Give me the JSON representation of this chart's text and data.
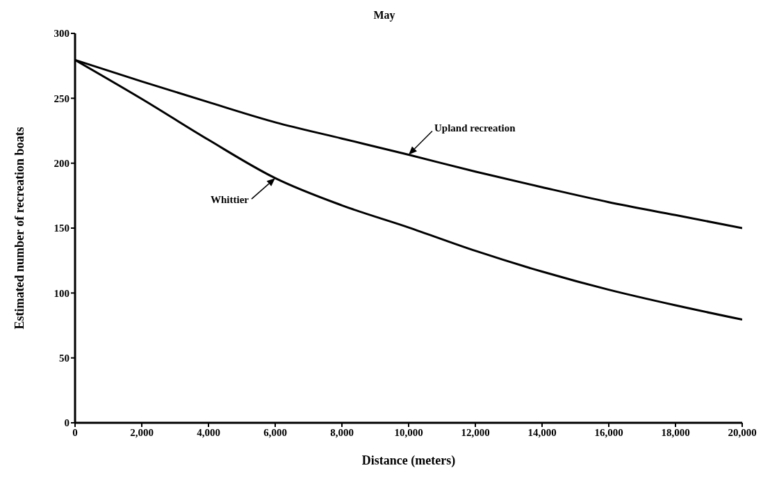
{
  "chart_data": {
    "type": "line",
    "title": "May",
    "xlabel": "Distance (meters)",
    "ylabel": "Estimated number of recreation boats",
    "x": [
      0,
      2000,
      4000,
      6000,
      8000,
      10000,
      12000,
      14000,
      16000,
      18000,
      20000
    ],
    "series": [
      {
        "name": "Upland recreation",
        "color": "#000000",
        "values": [
          279.5,
          263,
          247,
          231.5,
          219,
          206.5,
          193.5,
          181.5,
          170,
          160,
          150
        ]
      },
      {
        "name": "Whittier",
        "color": "#000000",
        "values": [
          279.5,
          249.5,
          218,
          188.5,
          167.5,
          150.5,
          132.5,
          116.5,
          102.5,
          90.5,
          79.5
        ]
      }
    ],
    "xlim": [
      0,
      20000
    ],
    "ylim": [
      0,
      300
    ],
    "xticks": [
      0,
      {
        "value": 2000,
        "label": "2,000"
      },
      {
        "value": 4000,
        "label": "4,000"
      },
      {
        "value": 6000,
        "label": "6,000"
      },
      {
        "value": 8000,
        "label": "8,000"
      },
      {
        "value": 10000,
        "label": "10,000"
      },
      {
        "value": 12000,
        "label": "12,000"
      },
      {
        "value": 14000,
        "label": "14,000"
      },
      {
        "value": 16000,
        "label": "16,000"
      },
      {
        "value": 18000,
        "label": "18,000"
      },
      {
        "value": 20000,
        "label": "20,000"
      }
    ],
    "yticks": [
      0,
      50,
      100,
      150,
      200,
      250,
      300
    ],
    "grid": false,
    "legend": false,
    "marker": "none",
    "line_style": "solid"
  }
}
